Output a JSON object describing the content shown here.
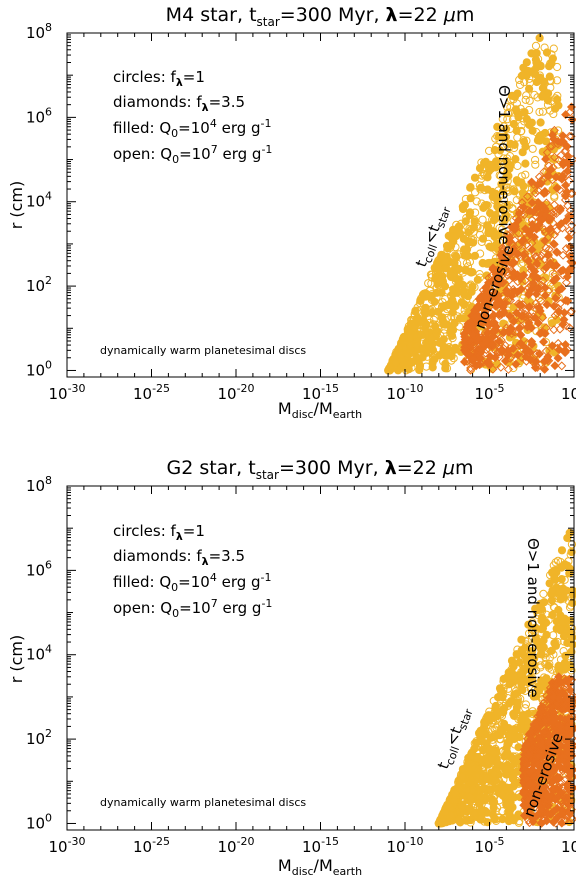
{
  "colors": {
    "circles": "#f0b429",
    "diamonds": "#e8701e",
    "axis": "#000000"
  },
  "chart_data": [
    {
      "type": "scatter",
      "title": "M4 star, t_star=300 Myr, λ=22 μm",
      "xlabel": "M_disc/M_earth",
      "ylabel": "r (cm)",
      "xscale": "log",
      "yscale": "log",
      "xlim": [
        1e-30,
        1
      ],
      "ylim": [
        0.7,
        100000000.0
      ],
      "x_ticks": [
        "10^-30",
        "10^-25",
        "10^-20",
        "10^-15",
        "10^-10",
        "10^-5",
        "10^0"
      ],
      "y_ticks": [
        "10^0",
        "10^2",
        "10^4",
        "10^6",
        "10^8"
      ],
      "legend": [
        "circles: f_λ=1",
        "diamonds: f_λ=3.5",
        "filled: Q_0=10^4 erg g^-1",
        "open: Q_0=10^7 erg g^-1"
      ],
      "annotations": [
        "t_coll<t_star",
        "Θ>1 and non-erosive",
        "non-erosive",
        "dynamically warm planetesimal discs"
      ],
      "series": [
        {
          "name": "circles (f_λ=1)",
          "region": {
            "x_min_log10": -11,
            "slope_y_per_x": 1.0,
            "x_at_r_1cm_log10": -11,
            "x_max_log10": -0.9,
            "y_min_log10": 0,
            "y_max_log10": 7.9
          }
        },
        {
          "name": "diamonds (f_λ=3.5)",
          "region": {
            "x_min_log10": -6.5,
            "slope_y_per_x": 1.0,
            "x_at_r_1cm_log10": -7.5,
            "x_max_log10": 0,
            "y_min_log10": 0,
            "y_max_log10": 6.9
          }
        }
      ]
    },
    {
      "type": "scatter",
      "title": "G2 star, t_star=300 Myr, λ=22 μm",
      "xlabel": "M_disc/M_earth",
      "ylabel": "r (cm)",
      "xscale": "log",
      "yscale": "log",
      "xlim": [
        1e-30,
        1
      ],
      "ylim": [
        0.7,
        100000000.0
      ],
      "x_ticks": [
        "10^-30",
        "10^-25",
        "10^-20",
        "10^-15",
        "10^-10",
        "10^-5",
        "10^0"
      ],
      "y_ticks": [
        "10^0",
        "10^2",
        "10^4",
        "10^6",
        "10^8"
      ],
      "legend": [
        "circles: f_λ=1",
        "diamonds: f_λ=3.5",
        "filled: Q_0=10^4 erg g^-1",
        "open: Q_0=10^7 erg g^-1"
      ],
      "annotations": [
        "t_coll<t_star",
        "Θ>1 and non-erosive",
        "non-erosive",
        "dynamically warm planetesimal discs"
      ],
      "series": [
        {
          "name": "circles (f_λ=1)",
          "region": {
            "x_min_log10": -8,
            "slope_y_per_x": 1.0,
            "x_at_r_1cm_log10": -8,
            "x_max_log10": 0,
            "y_min_log10": 0,
            "y_max_log10": 7.6
          }
        },
        {
          "name": "diamonds (f_λ=3.5)",
          "region": {
            "x_min_log10": -3,
            "slope_y_per_x": 1.0,
            "x_at_r_1cm_log10": -5,
            "x_max_log10": 0,
            "y_min_log10": 0,
            "y_max_log10": 3.5
          }
        }
      ]
    }
  ]
}
